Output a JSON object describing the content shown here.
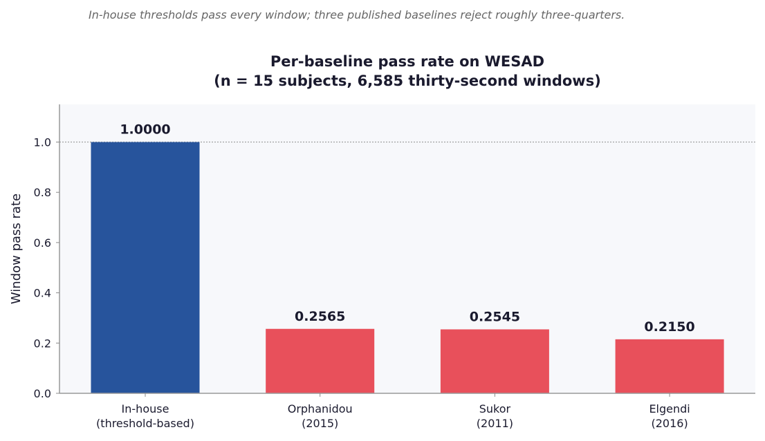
{
  "caption": "In-house thresholds pass every window; three published baselines reject roughly three-quarters.",
  "chart_data": {
    "type": "bar",
    "title_lines": [
      "Per-baseline pass rate on WESAD",
      "(n = 15 subjects, 6,585 thirty-second windows)"
    ],
    "ylabel": "Window pass rate",
    "ylim": [
      0,
      1.15
    ],
    "yticks": [
      "0.0",
      "0.2",
      "0.4",
      "0.6",
      "0.8",
      "1.0"
    ],
    "categories": [
      [
        "In-house",
        "(threshold-based)"
      ],
      [
        "Orphanidou",
        "(2015)"
      ],
      [
        "Sukor",
        "(2011)"
      ],
      [
        "Elgendi",
        "(2016)"
      ]
    ],
    "values": [
      1.0,
      0.2565,
      0.2545,
      0.215
    ],
    "value_labels": [
      "1.0000",
      "0.2565",
      "0.2545",
      "0.2150"
    ],
    "bar_colors": [
      "#27549c",
      "#e8505b",
      "#e8505b",
      "#e8505b"
    ],
    "reference_line": 1.0,
    "grid": false,
    "plot_background": "#f7f8fb"
  }
}
